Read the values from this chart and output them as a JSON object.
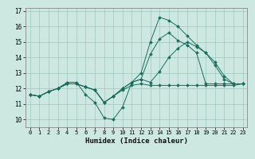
{
  "xlabel": "Humidex (Indice chaleur)",
  "bg_color": "#cce8e0",
  "grid_color": "#a0c8c0",
  "line_color": "#1a6e60",
  "xlim": [
    -0.5,
    23.5
  ],
  "ylim": [
    9.5,
    17.2
  ],
  "yticks": [
    10,
    11,
    12,
    13,
    14,
    15,
    16,
    17
  ],
  "xticks": [
    0,
    1,
    2,
    3,
    4,
    5,
    6,
    7,
    8,
    9,
    10,
    11,
    12,
    13,
    14,
    15,
    16,
    17,
    18,
    19,
    20,
    21,
    22,
    23
  ],
  "series": [
    [
      11.6,
      11.5,
      11.8,
      12.0,
      12.4,
      12.4,
      11.6,
      11.1,
      10.1,
      10.0,
      10.8,
      12.4,
      13.0,
      15.0,
      16.6,
      16.4,
      16.0,
      15.4,
      14.8,
      14.3,
      13.5,
      12.6,
      12.3,
      12.3
    ],
    [
      11.6,
      11.5,
      11.8,
      12.0,
      12.3,
      12.3,
      12.1,
      11.9,
      11.1,
      11.5,
      12.0,
      12.4,
      12.6,
      12.4,
      13.1,
      14.0,
      14.6,
      15.0,
      14.7,
      14.3,
      13.7,
      12.8,
      12.3,
      12.3
    ],
    [
      11.6,
      11.5,
      11.8,
      12.0,
      12.3,
      12.3,
      12.1,
      11.9,
      11.1,
      11.5,
      11.9,
      12.2,
      12.3,
      12.2,
      12.2,
      12.2,
      12.2,
      12.2,
      12.2,
      12.2,
      12.2,
      12.2,
      12.2,
      12.3
    ],
    [
      11.6,
      11.5,
      11.8,
      12.0,
      12.3,
      12.3,
      12.1,
      11.9,
      11.1,
      11.5,
      12.0,
      12.4,
      12.6,
      14.2,
      15.2,
      15.6,
      15.1,
      14.8,
      14.3,
      12.3,
      12.3,
      12.3,
      12.3,
      12.3
    ]
  ]
}
